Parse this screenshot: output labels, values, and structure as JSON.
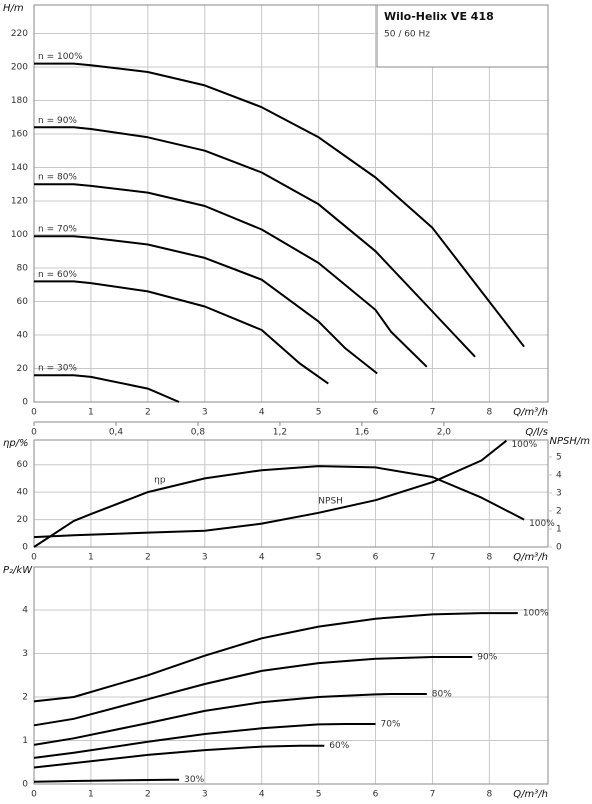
{
  "chart_data": [
    {
      "type": "line",
      "title": "Wilo-Helix VE 418",
      "subtitle": "50 / 60 Hz",
      "xlabel": "Q/m³/h",
      "ylabel": "H/m",
      "x2label": "Q/l/s",
      "xlim": [
        0,
        9.03
      ],
      "xticks": [
        0,
        1,
        2,
        3,
        4,
        5,
        6,
        7,
        8
      ],
      "x2lim": [
        0,
        2.508
      ],
      "x2ticks": [
        0,
        {
          "value": 0.4,
          "label": "0,4"
        },
        {
          "value": 0.8,
          "label": "0,8"
        },
        {
          "value": 1.2,
          "label": "1,2"
        },
        {
          "value": 1.6,
          "label": "1,6"
        },
        {
          "value": 2.0,
          "label": "2,0"
        }
      ],
      "ylim": [
        0,
        237
      ],
      "yticks": [
        0,
        20,
        40,
        60,
        80,
        100,
        120,
        140,
        160,
        180,
        200,
        220
      ],
      "grid": true,
      "series": [
        {
          "name": "n = 100%",
          "color": "#000000",
          "x": [
            0,
            0.7,
            1,
            2,
            3,
            4,
            5,
            6,
            7,
            7.86,
            8.61
          ],
          "values": [
            202,
            202,
            201,
            197,
            189,
            176,
            158,
            134,
            104,
            66,
            33
          ]
        },
        {
          "name": "n = 90%",
          "color": "#000000",
          "x": [
            0,
            0.7,
            1,
            2,
            3,
            4,
            5,
            6,
            7,
            7.75
          ],
          "values": [
            164,
            164,
            163,
            158,
            150,
            137,
            118,
            90,
            54,
            27
          ]
        },
        {
          "name": "n = 80%",
          "color": "#000000",
          "x": [
            0,
            0.7,
            1,
            2,
            3,
            4,
            5,
            6,
            6.27,
            6.9
          ],
          "values": [
            130,
            130,
            129,
            125,
            117,
            103,
            83,
            55,
            42,
            21
          ]
        },
        {
          "name": "n = 70%",
          "color": "#000000",
          "x": [
            0,
            0.7,
            1,
            2,
            3,
            4,
            5,
            5.47,
            6.03
          ],
          "values": [
            99,
            99,
            98,
            94,
            86,
            73,
            48,
            32,
            17
          ]
        },
        {
          "name": "n = 60%",
          "color": "#000000",
          "x": [
            0,
            0.7,
            1,
            2,
            3,
            4,
            4.67,
            5.17
          ],
          "values": [
            72,
            72,
            71,
            66,
            57,
            43,
            23,
            11
          ]
        },
        {
          "name": "n = 30%",
          "color": "#000000",
          "x": [
            0,
            0.7,
            1,
            2,
            2.55
          ],
          "values": [
            16,
            16,
            15,
            8,
            0
          ]
        }
      ]
    },
    {
      "type": "line",
      "xlabel": "Q/m³/h",
      "ylabel": "ηp/%",
      "y2label": "NPSH/m",
      "xlim": [
        0,
        9.03
      ],
      "xticks": [
        0,
        1,
        2,
        3,
        4,
        5,
        6,
        7,
        8
      ],
      "ylim": [
        0,
        78
      ],
      "yticks": [
        0,
        20,
        40,
        60
      ],
      "y2lim": [
        0,
        5.94
      ],
      "y2ticks": [
        0,
        1,
        2,
        3,
        4,
        5
      ],
      "grid": true,
      "series": [
        {
          "name": "ηp",
          "color": "#000000",
          "end_label": "100%",
          "x": [
            0,
            0.7,
            1,
            2,
            3,
            4,
            5,
            6,
            7,
            7.86,
            8.61
          ],
          "values": [
            0,
            19,
            24,
            40,
            50,
            56,
            59,
            58,
            51,
            36,
            20
          ]
        },
        {
          "name": "NPSH",
          "color": "#000000",
          "axis": "y2",
          "end_label": "100%",
          "x": [
            0,
            0.7,
            2,
            3,
            4,
            5,
            6,
            7,
            7.86,
            8.3
          ],
          "values": [
            0.55,
            0.65,
            0.8,
            0.9,
            1.3,
            1.9,
            2.6,
            3.6,
            4.8,
            5.9
          ]
        }
      ]
    },
    {
      "type": "line",
      "xlabel": "Q/m³/h",
      "ylabel": "P₂/kW",
      "xlim": [
        0,
        9.03
      ],
      "xticks": [
        0,
        1,
        2,
        3,
        4,
        5,
        6,
        7,
        8
      ],
      "ylim": [
        0,
        4.99
      ],
      "yticks": [
        0,
        1,
        2,
        3,
        4
      ],
      "grid": true,
      "series": [
        {
          "name": "100%",
          "color": "#000000",
          "x": [
            0,
            0.7,
            2,
            3,
            4,
            5,
            6,
            7,
            7.86,
            8.5
          ],
          "values": [
            1.9,
            2.0,
            2.5,
            2.95,
            3.35,
            3.62,
            3.8,
            3.9,
            3.93,
            3.93
          ]
        },
        {
          "name": "90%",
          "color": "#000000",
          "x": [
            0,
            0.7,
            2,
            3,
            4,
            5,
            6,
            7,
            7.7
          ],
          "values": [
            1.35,
            1.5,
            1.95,
            2.3,
            2.6,
            2.78,
            2.88,
            2.92,
            2.92
          ]
        },
        {
          "name": "80%",
          "color": "#000000",
          "x": [
            0,
            0.7,
            2,
            3,
            4,
            5,
            6,
            6.27,
            6.9
          ],
          "values": [
            0.9,
            1.05,
            1.4,
            1.68,
            1.88,
            2.0,
            2.06,
            2.07,
            2.07
          ]
        },
        {
          "name": "70%",
          "color": "#000000",
          "x": [
            0,
            0.7,
            2,
            3,
            4,
            5,
            5.47,
            6.0
          ],
          "values": [
            0.6,
            0.72,
            0.97,
            1.15,
            1.28,
            1.37,
            1.38,
            1.38
          ]
        },
        {
          "name": "60%",
          "color": "#000000",
          "x": [
            0,
            0.7,
            2,
            3,
            4,
            4.67,
            5.1
          ],
          "values": [
            0.38,
            0.48,
            0.67,
            0.78,
            0.86,
            0.88,
            0.88
          ]
        },
        {
          "name": "30%",
          "color": "#000000",
          "x": [
            0,
            0.7,
            2.4,
            2.55
          ],
          "values": [
            0.05,
            0.07,
            0.1,
            0.1
          ]
        }
      ]
    }
  ]
}
